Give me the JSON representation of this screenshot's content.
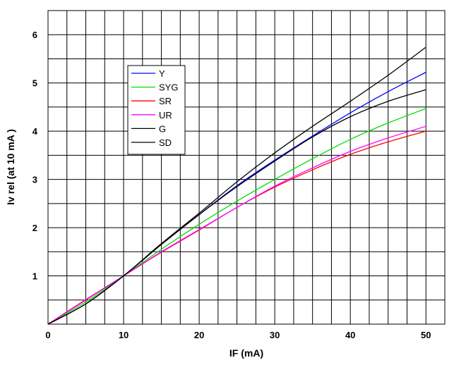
{
  "chart_data": {
    "type": "line",
    "xlabel": "IF (mA)",
    "ylabel": "Iv rel (at 10 mA )",
    "xlim": [
      0,
      52.5
    ],
    "ylim": [
      0,
      6.5
    ],
    "x_ticks": [
      0,
      10,
      20,
      30,
      40,
      50
    ],
    "y_ticks": [
      1,
      2,
      3,
      4,
      5,
      6
    ],
    "x_grid_step": 2.5,
    "y_grid_step": 0.5,
    "grid": true,
    "legend_position": "upper-left",
    "series": [
      {
        "name": "Y",
        "color": "#0000ff",
        "x": [
          0,
          5,
          10,
          15,
          20,
          25,
          30,
          35,
          40,
          45,
          50
        ],
        "y": [
          0,
          0.42,
          1,
          1.66,
          2.27,
          2.87,
          3.4,
          3.9,
          4.38,
          4.82,
          5.22
        ]
      },
      {
        "name": "SYG",
        "color": "#00dd00",
        "x": [
          0,
          5,
          10,
          15,
          20,
          25,
          30,
          35,
          40,
          45,
          50
        ],
        "y": [
          0,
          0.46,
          1,
          1.55,
          2.07,
          2.55,
          3.0,
          3.43,
          3.83,
          4.17,
          4.47
        ]
      },
      {
        "name": "SR",
        "color": "#ff0000",
        "x": [
          0,
          5,
          10,
          15,
          20,
          25,
          30,
          35,
          40,
          45,
          50
        ],
        "y": [
          0,
          0.5,
          1,
          1.49,
          1.95,
          2.42,
          2.84,
          3.2,
          3.52,
          3.78,
          4.0
        ]
      },
      {
        "name": "UR",
        "color": "#ff00ff",
        "x": [
          0,
          5,
          10,
          15,
          20,
          25,
          30,
          35,
          40,
          45,
          50
        ],
        "y": [
          0,
          0.51,
          1,
          1.5,
          1.96,
          2.42,
          2.86,
          3.24,
          3.58,
          3.86,
          4.1
        ]
      },
      {
        "name": "G",
        "color": "#000000",
        "x": [
          0,
          5,
          10,
          15,
          20,
          25,
          30,
          35,
          40,
          45,
          50
        ],
        "y": [
          0,
          0.42,
          1,
          1.67,
          2.3,
          2.95,
          3.55,
          4.1,
          4.62,
          5.16,
          5.74
        ]
      },
      {
        "name": "SD",
        "color": "#000000",
        "x": [
          0,
          5,
          10,
          15,
          20,
          25,
          30,
          35,
          40,
          45,
          50
        ],
        "y": [
          0,
          0.42,
          1,
          1.65,
          2.27,
          2.85,
          3.38,
          3.88,
          4.3,
          4.62,
          4.86
        ]
      }
    ]
  }
}
